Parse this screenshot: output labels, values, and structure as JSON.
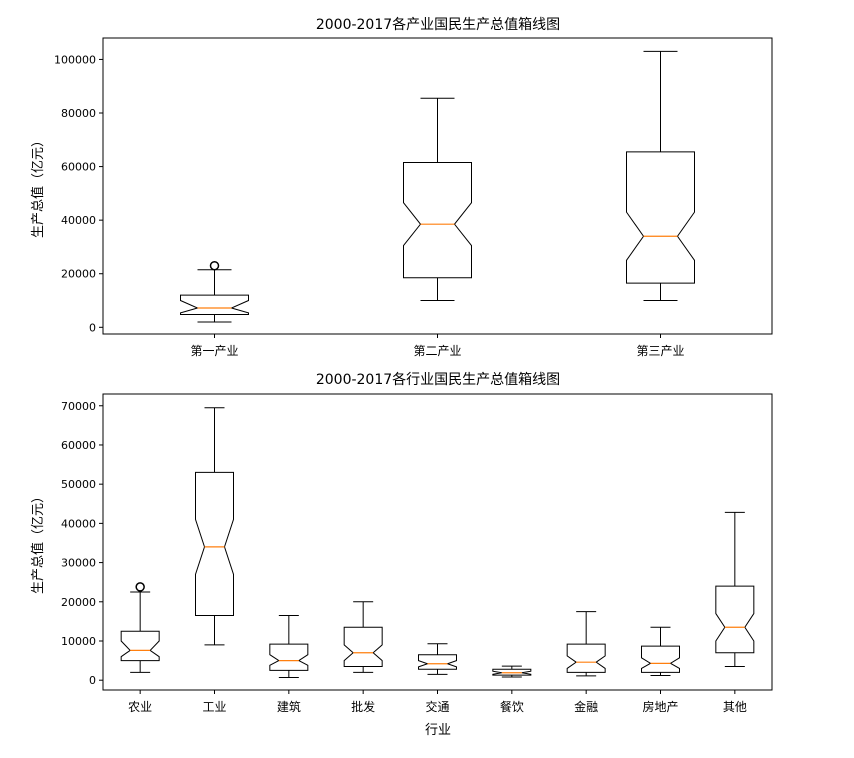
{
  "chart_data": [
    {
      "type": "boxplot",
      "title": "2000-2017各产业国民生产总值箱线图",
      "xlabel": "",
      "ylabel": "生产总值（亿元）",
      "categories": [
        "第一产业",
        "第二产业",
        "第三产业"
      ],
      "yticks": [
        0,
        20000,
        40000,
        60000,
        80000,
        100000
      ],
      "ylim": [
        -2500,
        108000
      ],
      "boxes": [
        {
          "whisker_low": 2000,
          "q1": 4800,
          "median": 7200,
          "q3": 12000,
          "whisker_high": 21500,
          "notch_low": 5400,
          "notch_high": 10000,
          "outliers": [
            23000
          ]
        },
        {
          "whisker_low": 10000,
          "q1": 18500,
          "median": 38500,
          "q3": 61500,
          "whisker_high": 85500,
          "notch_low": 30500,
          "notch_high": 46500,
          "outliers": []
        },
        {
          "whisker_low": 10000,
          "q1": 16500,
          "median": 34000,
          "q3": 65500,
          "whisker_high": 103000,
          "notch_low": 25000,
          "notch_high": 43000,
          "outliers": []
        }
      ]
    },
    {
      "type": "boxplot",
      "title": "2000-2017各行业国民生产总值箱线图",
      "xlabel": "行业",
      "ylabel": "生产总值（亿元）",
      "categories": [
        "农业",
        "工业",
        "建筑",
        "批发",
        "交通",
        "餐饮",
        "金融",
        "房地产",
        "其他"
      ],
      "yticks": [
        0,
        10000,
        20000,
        30000,
        40000,
        50000,
        60000,
        70000
      ],
      "ylim": [
        -2500,
        73000
      ],
      "boxes": [
        {
          "whisker_low": 2000,
          "q1": 5000,
          "median": 7600,
          "q3": 12500,
          "whisker_high": 22500,
          "notch_low": 6000,
          "notch_high": 10000,
          "outliers": [
            23800
          ]
        },
        {
          "whisker_low": 9000,
          "q1": 16500,
          "median": 34000,
          "q3": 53000,
          "whisker_high": 69500,
          "notch_low": 27000,
          "notch_high": 41000,
          "outliers": []
        },
        {
          "whisker_low": 700,
          "q1": 2500,
          "median": 5000,
          "q3": 9200,
          "whisker_high": 16500,
          "notch_low": 3800,
          "notch_high": 6500,
          "outliers": []
        },
        {
          "whisker_low": 2000,
          "q1": 3500,
          "median": 7000,
          "q3": 13500,
          "whisker_high": 20000,
          "notch_low": 5000,
          "notch_high": 9000,
          "outliers": []
        },
        {
          "whisker_low": 1500,
          "q1": 2800,
          "median": 4200,
          "q3": 6500,
          "whisker_high": 9300,
          "notch_low": 3400,
          "notch_high": 5000,
          "outliers": []
        },
        {
          "whisker_low": 800,
          "q1": 1300,
          "median": 1900,
          "q3": 2800,
          "whisker_high": 3600,
          "notch_low": 1500,
          "notch_high": 2300,
          "outliers": []
        },
        {
          "whisker_low": 1100,
          "q1": 2000,
          "median": 4600,
          "q3": 9200,
          "whisker_high": 17500,
          "notch_low": 3000,
          "notch_high": 6200,
          "outliers": []
        },
        {
          "whisker_low": 1200,
          "q1": 2000,
          "median": 4300,
          "q3": 8700,
          "whisker_high": 13500,
          "notch_low": 3000,
          "notch_high": 5700,
          "outliers": []
        },
        {
          "whisker_low": 3500,
          "q1": 7000,
          "median": 13500,
          "q3": 24000,
          "whisker_high": 42800,
          "notch_low": 10000,
          "notch_high": 17000,
          "outliers": []
        }
      ]
    }
  ],
  "colors": {
    "box": "#000000",
    "median": "#ff7f0e",
    "frame": "#000000"
  }
}
